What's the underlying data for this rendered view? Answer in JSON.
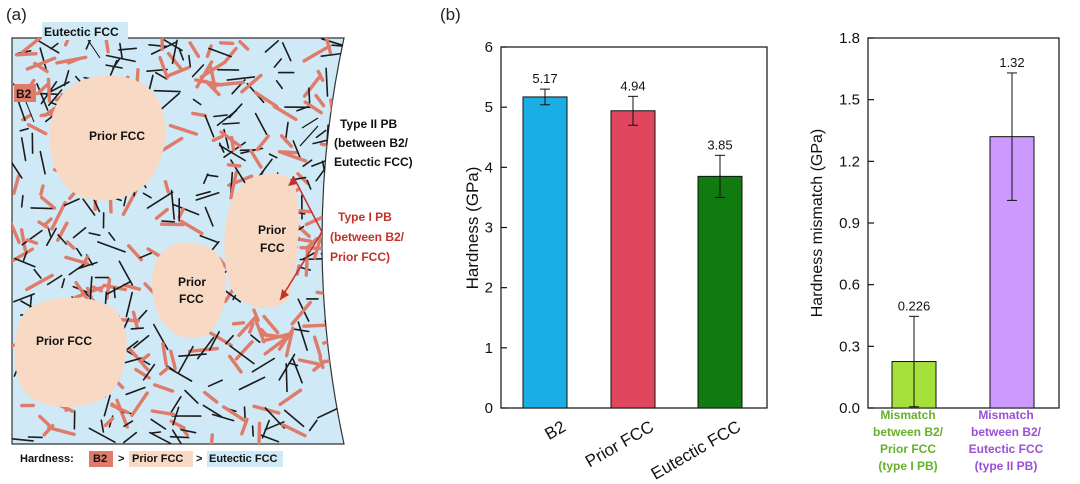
{
  "panel_a": {
    "label": "(a)",
    "eutectic_fcc": "Eutectic FCC",
    "b2": "B2",
    "regions": [
      "Prior FCC",
      "Prior FCC",
      "Prior FCC",
      "Prior FCC"
    ],
    "type2": [
      "Type II PB",
      "(between B2/",
      "Eutectic FCC)"
    ],
    "type1": [
      "Type I PB",
      "(between B2/",
      "Prior FCC)"
    ],
    "hardness_prefix": "Hardness:",
    "hardness_b2": "B2",
    "hardness_gt1": ">",
    "hardness_prior": "Prior FCC",
    "hardness_gt2": ">",
    "hardness_eutectic": "Eutectic FCC",
    "colors": {
      "matrix": "#cfe9f6",
      "b2": "#e07b6a",
      "prior": "#f8d9c4",
      "type1": "#c0322b"
    }
  },
  "panel_b_label": "(b)",
  "chart_data": [
    {
      "type": "bar",
      "categories": [
        "B2",
        "Prior FCC",
        "Eutectic FCC"
      ],
      "values": [
        5.17,
        4.94,
        3.85
      ],
      "errors": [
        0.13,
        0.24,
        0.35
      ],
      "value_labels": [
        "5.17",
        "4.94",
        "3.85"
      ],
      "colors": [
        "#1aaee4",
        "#e0475e",
        "#117a11"
      ],
      "ylabel": "Hardness (GPa)",
      "ylim": [
        0,
        6
      ],
      "yticks": [
        0,
        1,
        2,
        3,
        4,
        5,
        6
      ],
      "ytick_labels": [
        "0",
        "1",
        "2",
        "3",
        "4",
        "5",
        "6"
      ]
    },
    {
      "type": "bar",
      "categories": [
        [
          "Mismatch",
          "between B2/",
          "Prior FCC",
          "(type I PB)"
        ],
        [
          "Mismatch",
          "between B2/",
          "Eutectic FCC",
          "(type II PB)"
        ]
      ],
      "values": [
        0.226,
        1.32
      ],
      "errors": [
        0.22,
        0.31
      ],
      "value_labels": [
        "0.226",
        "1.32"
      ],
      "colors": [
        "#a5e13a",
        "#cc99ff"
      ],
      "label_colors": [
        "#66b02a",
        "#9a50d6"
      ],
      "ylabel": "Hardness mismatch (GPa)",
      "ylim": [
        0,
        1.8
      ],
      "yticks": [
        0,
        0.3,
        0.6,
        0.9,
        1.2,
        1.5,
        1.8
      ],
      "ytick_labels": [
        "0.0",
        "0.3",
        "0.6",
        "0.9",
        "1.2",
        "1.5",
        "1.8"
      ]
    }
  ]
}
